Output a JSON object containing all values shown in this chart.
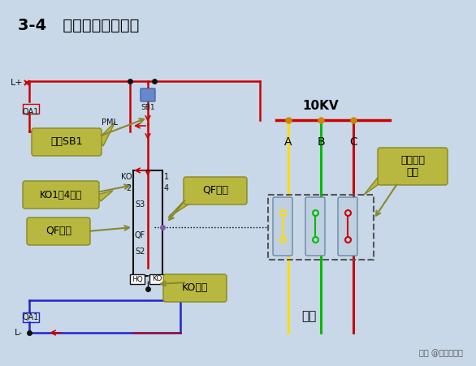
{
  "title": "3-4   防止开关跳跃原理",
  "bg_color": "#c8d8e8",
  "label_bg": "#b8b840",
  "annotations": [
    "按下SB1",
    "KO1、4接通",
    "QF断开",
    "QF接通",
    "KO得电",
    "真空开关\n合上"
  ],
  "10kv_label": "10KV",
  "abc_labels": [
    "A",
    "B",
    "C"
  ],
  "load_label": "负载",
  "footer": "头条 @兴福园电力",
  "circuit_color_top": "#cc0000",
  "circuit_color_bottom": "#2222cc",
  "line_A": "#ffdd00",
  "line_B": "#00bb00",
  "line_C": "#cc0000"
}
